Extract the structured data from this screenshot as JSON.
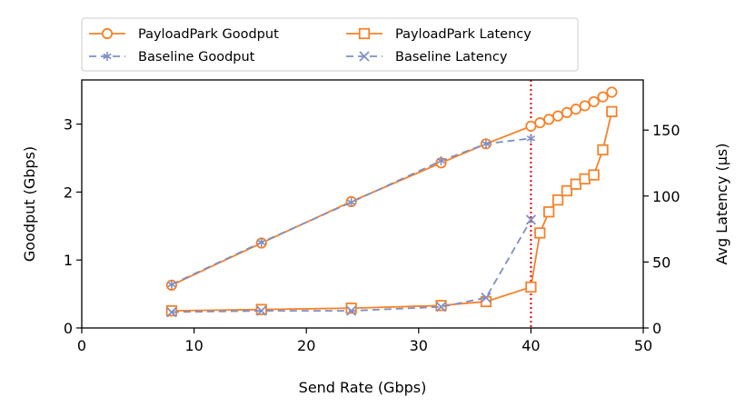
{
  "chart_data": {
    "type": "line",
    "xlabel": "Send Rate (Gbps)",
    "ylabel": "Goodput (Gbps)",
    "y2label": "Avg Latency (μs)",
    "xlim": [
      0,
      50
    ],
    "ylim": [
      0,
      3.65
    ],
    "y2lim": [
      0,
      188
    ],
    "x_ticks": [
      0,
      10,
      20,
      30,
      40,
      50
    ],
    "y_ticks": [
      0,
      1,
      2,
      3
    ],
    "y2_ticks": [
      0,
      50,
      100,
      150
    ],
    "vline": {
      "x": 40,
      "color": "#e8000b",
      "style": "dotted"
    },
    "legend_position": "above-plot",
    "series": [
      {
        "name": "PayloadPark Goodput",
        "axis": "left",
        "color": "#f5822a",
        "marker": "circle",
        "linestyle": "solid",
        "x": [
          8,
          16,
          24,
          32,
          36,
          40,
          40.8,
          41.6,
          42.4,
          43.2,
          44.0,
          44.8,
          45.6,
          46.4,
          47.2
        ],
        "y": [
          0.63,
          1.25,
          1.86,
          2.43,
          2.71,
          2.97,
          3.02,
          3.07,
          3.12,
          3.17,
          3.22,
          3.27,
          3.33,
          3.4,
          3.47
        ]
      },
      {
        "name": "Baseline Goodput",
        "axis": "left",
        "color": "#7f8fc5",
        "marker": "star",
        "linestyle": "dashed",
        "x": [
          8,
          16,
          24,
          32,
          36,
          40
        ],
        "y": [
          0.64,
          1.26,
          1.85,
          2.46,
          2.71,
          2.79
        ]
      },
      {
        "name": "PayloadPark Latency",
        "axis": "right",
        "color": "#f5822a",
        "marker": "square",
        "linestyle": "solid",
        "x": [
          8,
          16,
          24,
          32,
          36,
          40,
          40.8,
          41.6,
          42.4,
          43.2,
          44.0,
          44.8,
          45.6,
          46.4,
          47.2
        ],
        "y": [
          13,
          14,
          15,
          17,
          20,
          31,
          72,
          88,
          97,
          104,
          109,
          113,
          116,
          135,
          164
        ]
      },
      {
        "name": "Baseline Latency",
        "axis": "right",
        "color": "#7f8fc5",
        "marker": "x",
        "linestyle": "dashed",
        "x": [
          8,
          16,
          24,
          32,
          36,
          40
        ],
        "y": [
          12,
          13,
          13,
          16,
          23,
          82
        ]
      }
    ]
  }
}
